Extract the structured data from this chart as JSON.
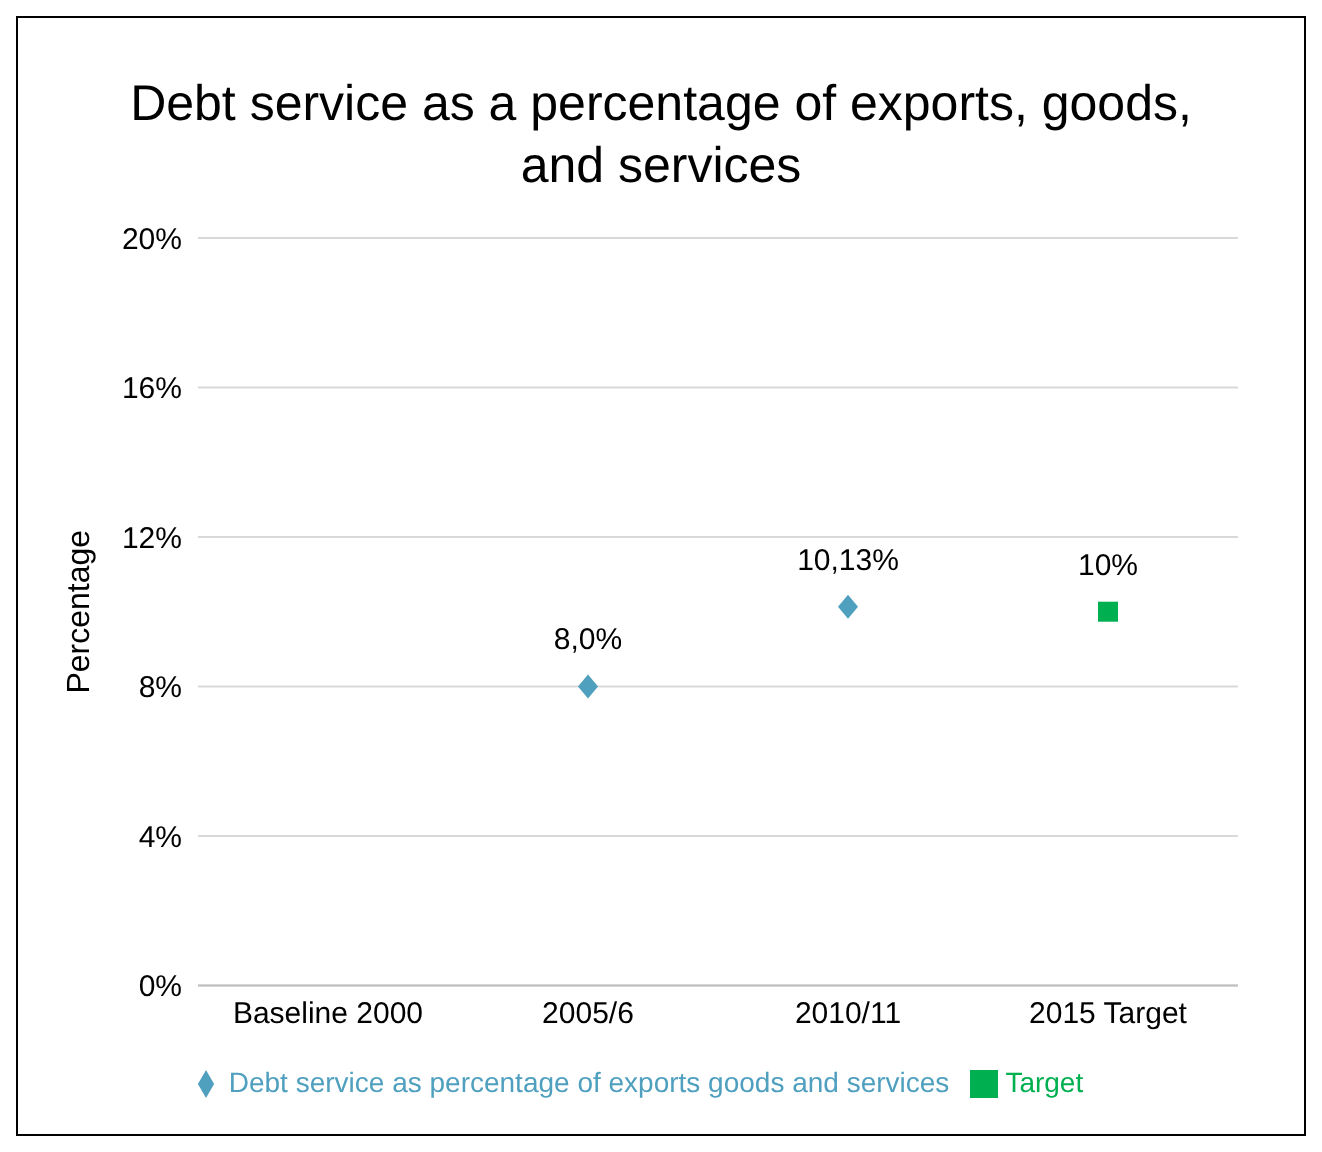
{
  "chart_data": {
    "type": "scatter",
    "title": "Debt service as a percentage of exports, goods, and services",
    "ylabel": "Percentage",
    "categories": [
      "Baseline 2000",
      "2005/6",
      "2010/11",
      "2015 Target"
    ],
    "series": [
      {
        "name": "Debt service as percentage of exports goods and services",
        "color": "#4f9fbf",
        "marker": "diamond",
        "values": [
          null,
          8.0,
          10.13,
          null
        ],
        "value_labels": [
          null,
          "8,0%",
          "10,13%",
          null
        ]
      },
      {
        "name": "Target",
        "color": "#00b050",
        "marker": "square",
        "values": [
          null,
          null,
          null,
          10
        ],
        "value_labels": [
          null,
          null,
          null,
          "10%"
        ]
      }
    ],
    "ylim": [
      0,
      20
    ],
    "yticks": [
      {
        "value": 0,
        "label": "0%"
      },
      {
        "value": 4,
        "label": "4%"
      },
      {
        "value": 8,
        "label": "8%"
      },
      {
        "value": 12,
        "label": "12%"
      },
      {
        "value": 16,
        "label": "16%"
      },
      {
        "value": 20,
        "label": "20%"
      }
    ],
    "grid": "y",
    "legend": "bottom"
  }
}
